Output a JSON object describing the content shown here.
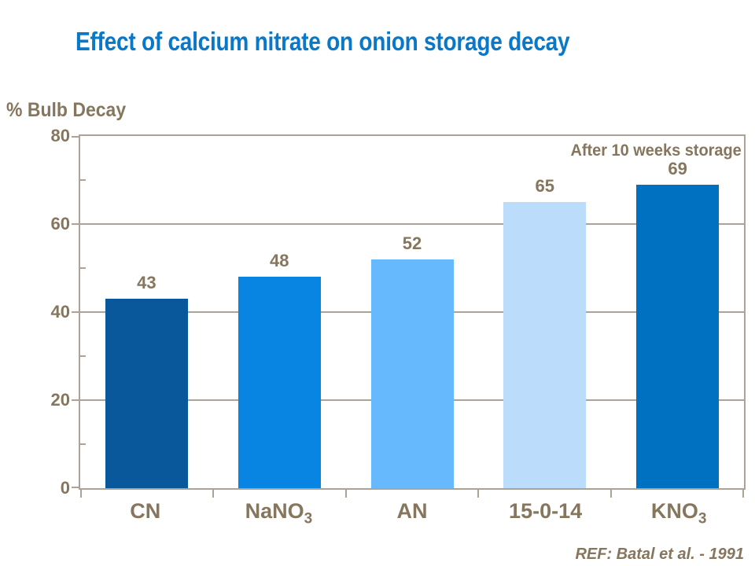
{
  "slide": {
    "title": "Effect of calcium nitrate on onion storage decay",
    "reference": "REF: Batal et al. - 1991"
  },
  "chart_data": {
    "type": "bar",
    "title": "Effect of calcium nitrate on onion storage decay",
    "ylabel": "% Bulb Decay",
    "annotation": "After 10 weeks storage",
    "categories": [
      "CN",
      "NaNO3",
      "AN",
      "15-0-14",
      "KNO3"
    ],
    "categories_rich": [
      {
        "text": "CN",
        "sub": ""
      },
      {
        "text": "NaNO",
        "sub": "3"
      },
      {
        "text": "AN",
        "sub": ""
      },
      {
        "text": "15-0-14",
        "sub": ""
      },
      {
        "text": "KNO",
        "sub": "3"
      }
    ],
    "values": [
      43,
      48,
      52,
      65,
      69
    ],
    "ylim": [
      0,
      80
    ],
    "yticks_major": [
      0,
      20,
      40,
      60,
      80
    ],
    "yticks_minor": [
      10,
      30,
      50,
      70
    ],
    "gridlines_at": [
      20,
      40,
      60
    ],
    "grid": true,
    "legend_position": "none",
    "bar_colors": [
      "#09589C",
      "#0884E2",
      "#66B9FC",
      "#BBDDFB",
      "#0070C0"
    ],
    "colors": {
      "title_blue": "#0A78C8",
      "label_brown": "#85765D",
      "axis_taupe": "#ACA296"
    }
  }
}
